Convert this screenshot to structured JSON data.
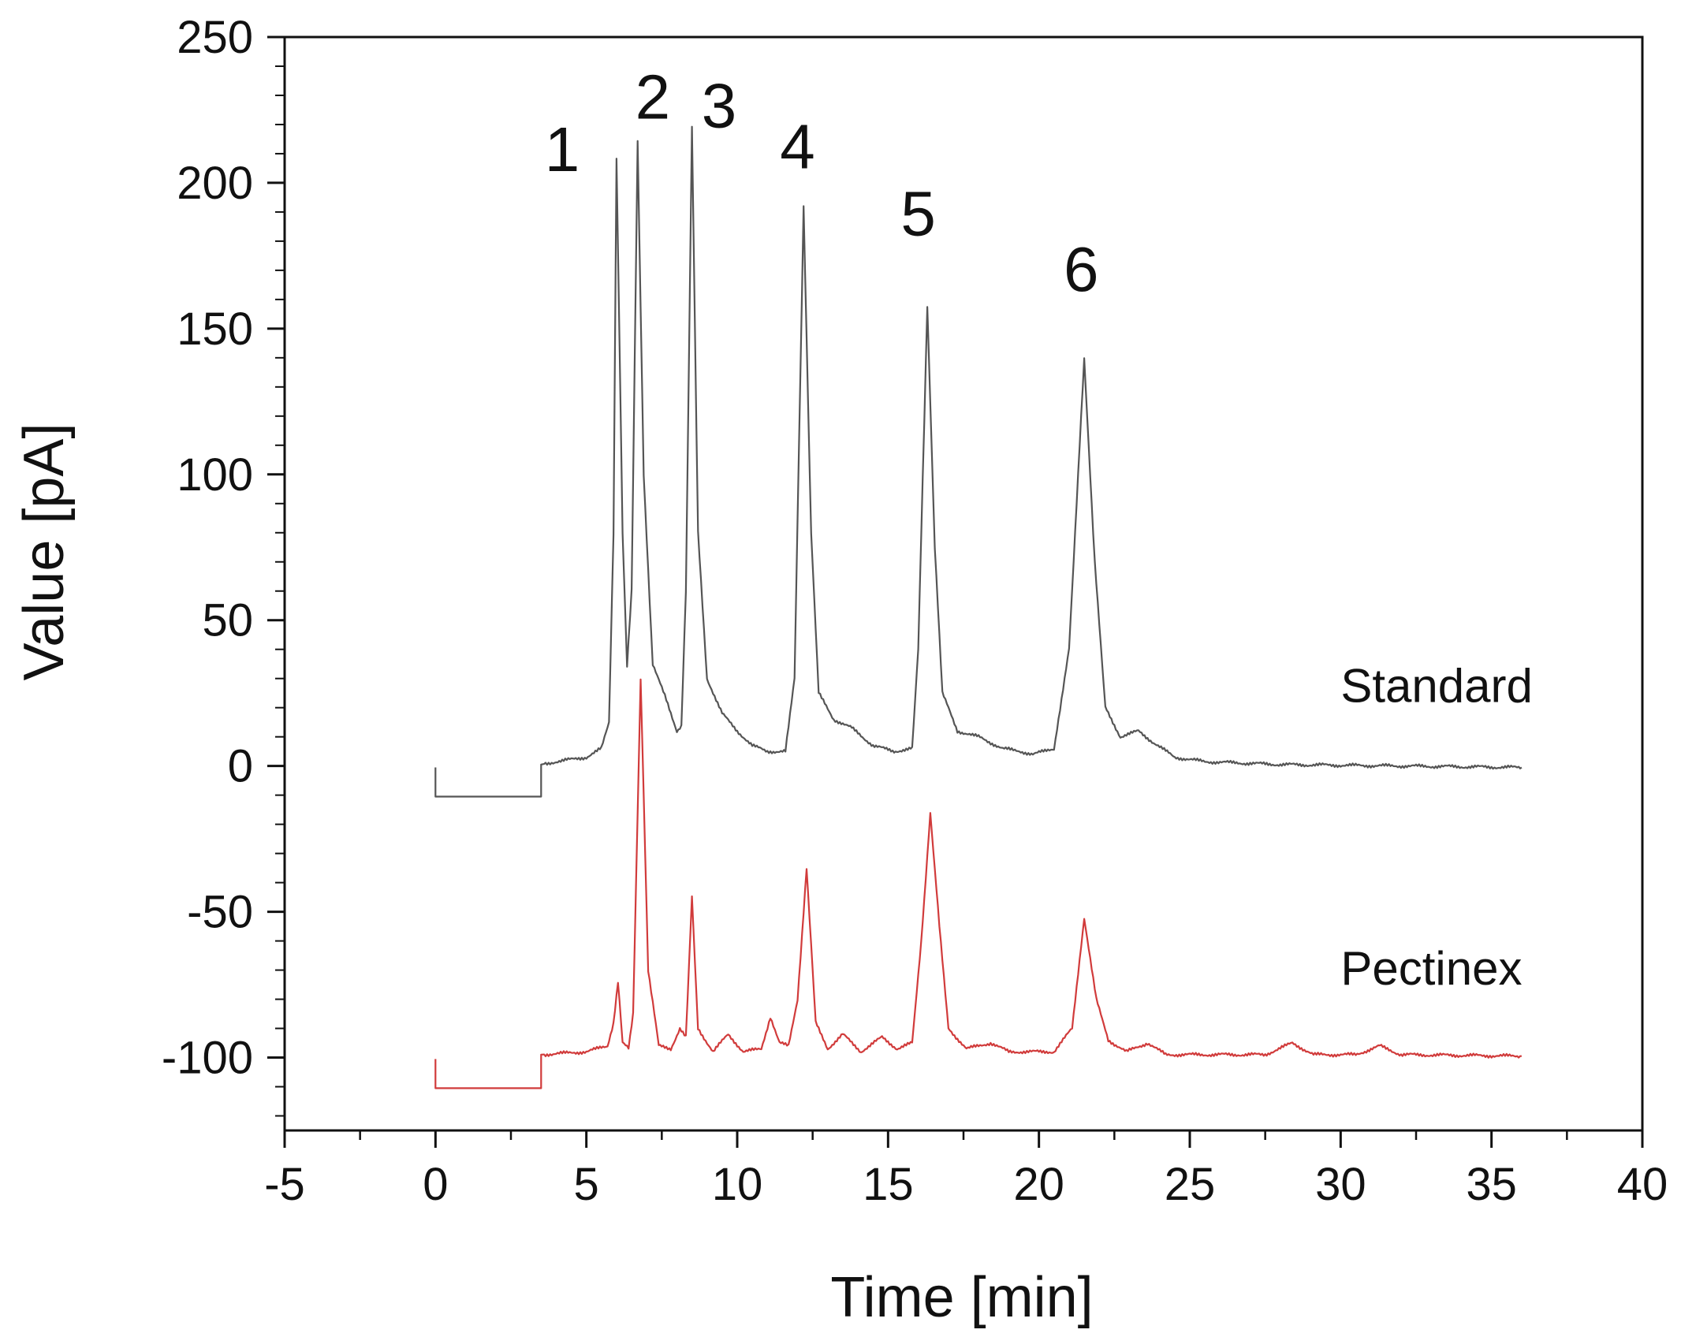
{
  "chart_data": {
    "type": "line",
    "title": "",
    "xlabel": "Time [min]",
    "ylabel": "Value [pA]",
    "xlim": [
      -5,
      40
    ],
    "ylim": [
      -125,
      250
    ],
    "xticks": [
      -5,
      0,
      5,
      10,
      15,
      20,
      25,
      30,
      35,
      40
    ],
    "yticks": [
      250,
      200,
      150,
      100,
      50,
      0,
      -50,
      -100
    ],
    "grid": false,
    "series": [
      {
        "name": "Standard",
        "color": "#555555",
        "baseline_offset": 0,
        "label_anchor": [
          30,
          22
        ],
        "data": [
          [
            0,
            -10.5
          ],
          [
            3.5,
            -10.5
          ],
          [
            3.5,
            0.5
          ],
          [
            4,
            1.5
          ],
          [
            5,
            3
          ],
          [
            5.5,
            6
          ],
          [
            5.75,
            15
          ],
          [
            5.9,
            80
          ],
          [
            6.0,
            209
          ],
          [
            6.2,
            80
          ],
          [
            6.35,
            34
          ],
          [
            6.5,
            60
          ],
          [
            6.7,
            214
          ],
          [
            6.9,
            100
          ],
          [
            7.2,
            35
          ],
          [
            7.6,
            24
          ],
          [
            8.0,
            12
          ],
          [
            8.15,
            14
          ],
          [
            8.3,
            60
          ],
          [
            8.5,
            219
          ],
          [
            8.7,
            80
          ],
          [
            9.0,
            30
          ],
          [
            9.5,
            18
          ],
          [
            10,
            12
          ],
          [
            10.5,
            7
          ],
          [
            11.0,
            5
          ],
          [
            11.6,
            5
          ],
          [
            11.9,
            30
          ],
          [
            12.2,
            192
          ],
          [
            12.45,
            80
          ],
          [
            12.7,
            25
          ],
          [
            13.2,
            16
          ],
          [
            13.8,
            13
          ],
          [
            14.5,
            7
          ],
          [
            15.2,
            5
          ],
          [
            15.8,
            6
          ],
          [
            16.0,
            40
          ],
          [
            16.3,
            158
          ],
          [
            16.55,
            75
          ],
          [
            16.8,
            25
          ],
          [
            17.3,
            12
          ],
          [
            18,
            10
          ],
          [
            18.8,
            6
          ],
          [
            19.4,
            5
          ],
          [
            19.8,
            4
          ],
          [
            20.5,
            6
          ],
          [
            21.0,
            40
          ],
          [
            21.5,
            140
          ],
          [
            21.85,
            70
          ],
          [
            22.2,
            20
          ],
          [
            22.7,
            10
          ],
          [
            23.3,
            12
          ],
          [
            23.8,
            8
          ],
          [
            24.5,
            3
          ],
          [
            25.5,
            1.5
          ],
          [
            28,
            0.5
          ],
          [
            32,
            0
          ],
          [
            36,
            -0.5
          ]
        ]
      },
      {
        "name": "Pectinex",
        "color": "#d13b3b",
        "baseline_offset": 0,
        "label_anchor": [
          30,
          -75
        ],
        "data": [
          [
            0,
            -110.5
          ],
          [
            3.5,
            -110.5
          ],
          [
            3.5,
            -99
          ],
          [
            5,
            -98
          ],
          [
            5.7,
            -96
          ],
          [
            5.9,
            -88
          ],
          [
            6.05,
            -74
          ],
          [
            6.2,
            -95
          ],
          [
            6.4,
            -97
          ],
          [
            6.55,
            -85
          ],
          [
            6.8,
            30
          ],
          [
            7.05,
            -70
          ],
          [
            7.4,
            -96
          ],
          [
            7.8,
            -97
          ],
          [
            8.1,
            -90
          ],
          [
            8.3,
            -93
          ],
          [
            8.5,
            -45
          ],
          [
            8.7,
            -90
          ],
          [
            9.2,
            -98
          ],
          [
            9.7,
            -92
          ],
          [
            10.2,
            -98
          ],
          [
            10.8,
            -97
          ],
          [
            11.1,
            -86
          ],
          [
            11.4,
            -95
          ],
          [
            11.7,
            -96
          ],
          [
            12.0,
            -80
          ],
          [
            12.3,
            -35
          ],
          [
            12.6,
            -88
          ],
          [
            13.0,
            -97
          ],
          [
            13.5,
            -92
          ],
          [
            14.1,
            -98
          ],
          [
            14.8,
            -93
          ],
          [
            15.3,
            -97
          ],
          [
            15.8,
            -95
          ],
          [
            16.1,
            -60
          ],
          [
            16.4,
            -16
          ],
          [
            16.7,
            -55
          ],
          [
            17.0,
            -90
          ],
          [
            17.6,
            -97
          ],
          [
            18.4,
            -95
          ],
          [
            19.0,
            -98
          ],
          [
            20.5,
            -98
          ],
          [
            21.1,
            -90
          ],
          [
            21.5,
            -52
          ],
          [
            21.9,
            -80
          ],
          [
            22.3,
            -94
          ],
          [
            22.9,
            -98
          ],
          [
            23.6,
            -95
          ],
          [
            24.2,
            -99
          ],
          [
            27.5,
            -99
          ],
          [
            28.4,
            -95
          ],
          [
            29.1,
            -99
          ],
          [
            30.5,
            -99
          ],
          [
            31.3,
            -96
          ],
          [
            32.0,
            -99
          ],
          [
            36,
            -99.5
          ]
        ]
      }
    ],
    "annotations": [
      {
        "text": "1",
        "x": 4.2,
        "y": 204
      },
      {
        "text": "2",
        "x": 7.2,
        "y": 222
      },
      {
        "text": "3",
        "x": 9.4,
        "y": 219
      },
      {
        "text": "4",
        "x": 12.0,
        "y": 205
      },
      {
        "text": "5",
        "x": 16.0,
        "y": 182
      },
      {
        "text": "6",
        "x": 21.4,
        "y": 163
      }
    ]
  }
}
